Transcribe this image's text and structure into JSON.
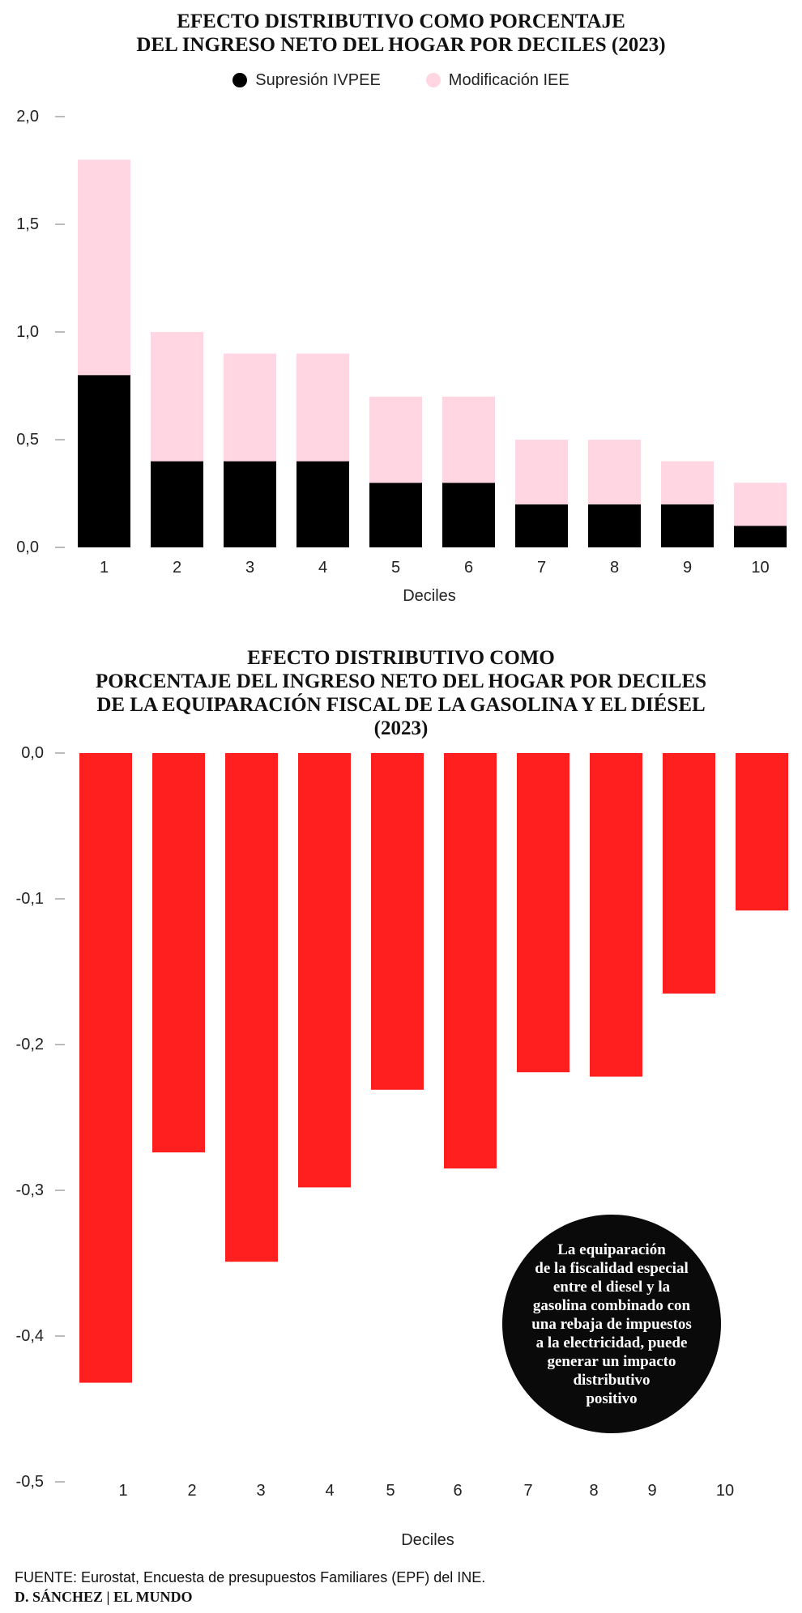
{
  "chart_data": [
    {
      "type": "bar",
      "stacked": true,
      "title_lines": [
        "EFECTO DISTRIBUTIVO COMO PORCENTAJE",
        "DEL INGRESO NETO DEL HOGAR POR DECILES (2023)"
      ],
      "legend": "top-center",
      "categories": [
        "1",
        "2",
        "3",
        "4",
        "5",
        "6",
        "7",
        "8",
        "9",
        "10"
      ],
      "series": [
        {
          "name": "Supresión IVPEE",
          "color": "#000000",
          "values": [
            0.8,
            0.4,
            0.4,
            0.4,
            0.3,
            0.3,
            0.2,
            0.2,
            0.2,
            0.1
          ]
        },
        {
          "name": "Modificación IEE",
          "color": "#ffd6e1",
          "values": [
            1.0,
            0.6,
            0.5,
            0.5,
            0.4,
            0.4,
            0.3,
            0.3,
            0.2,
            0.2
          ]
        }
      ],
      "xlabel": "Deciles",
      "ylabel": "",
      "ylim": [
        0,
        2.0
      ],
      "yticks": [
        "0,0",
        "0,5",
        "1,0",
        "1,5",
        "2,0"
      ],
      "grid": false
    },
    {
      "type": "bar",
      "title_lines": [
        "EFECTO DISTRIBUTIVO COMO",
        "PORCENTAJE DEL INGRESO NETO DEL HOGAR POR DECILES",
        "DE LA EQUIPARACIÓN FISCAL DE LA GASOLINA Y EL DIÉSEL",
        "(2023)"
      ],
      "categories": [
        "1",
        "2",
        "3",
        "4",
        "5",
        "6",
        "7",
        "8",
        "9",
        "10"
      ],
      "series": [
        {
          "color": "#ff1f1f",
          "values": [
            -0.432,
            -0.274,
            -0.349,
            -0.298,
            -0.231,
            -0.285,
            -0.219,
            -0.222,
            -0.165,
            -0.108
          ]
        }
      ],
      "xlabel": "Deciles",
      "ylabel": "",
      "ylim": [
        -0.5,
        0.0
      ],
      "yticks": [
        "0,0",
        "-0,1",
        "-0,2",
        "-0,3",
        "-0,4",
        "-0,5"
      ],
      "grid": false
    }
  ],
  "callout": {
    "lines": [
      "La equiparación",
      "de la fiscalidad especial",
      "entre el diesel y la",
      "gasolina combinado con",
      "una rebaja de impuestos",
      "a la electricidad, puede",
      "generar un impacto",
      "distributivo",
      "positivo"
    ]
  },
  "footer": {
    "source": "FUENTE: Eurostat, Encuesta de presupuestos Familiares (EPF) del INE.",
    "credit": "D. SÁNCHEZ | EL MUNDO"
  }
}
